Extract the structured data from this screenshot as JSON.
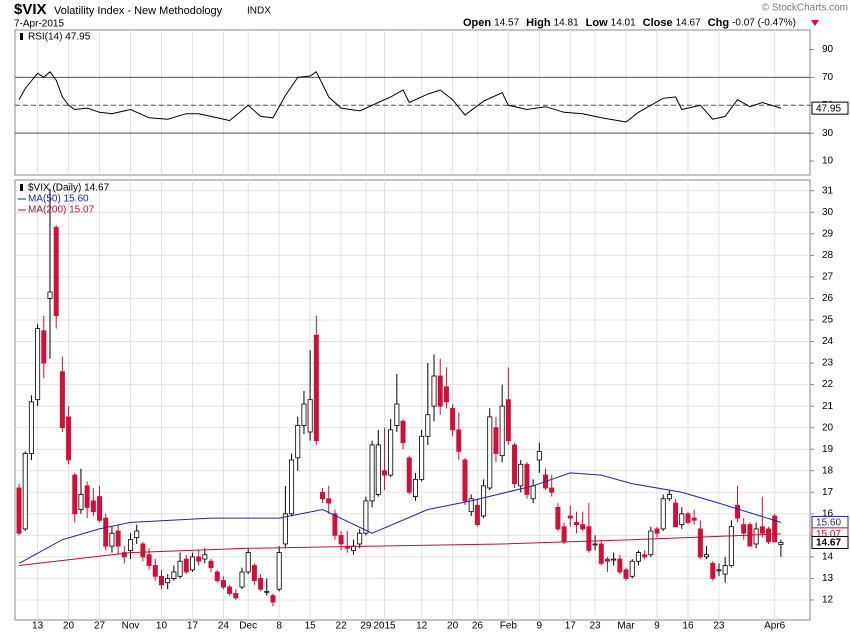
{
  "header": {
    "symbol": "$VIX",
    "name": "Volatility Index - New Methodology",
    "exchange": "INDX",
    "date": "7-Apr-2015",
    "credit": "© StockCharts.com",
    "quote": [
      {
        "label": "Open",
        "value": "14.57"
      },
      {
        "label": "High",
        "value": "14.81"
      },
      {
        "label": "Low",
        "value": "14.01"
      },
      {
        "label": "Close",
        "value": "14.67"
      },
      {
        "label": "Chg",
        "value": "-0.07 (-0.47%)"
      }
    ]
  },
  "chart_data": [
    {
      "type": "line",
      "xlim": [
        -0.65,
        127.7
      ],
      "ylim": [
        0,
        104
      ],
      "yticks": [
        10,
        30,
        50,
        70,
        90
      ],
      "grid": false,
      "reference_lines": [
        70,
        30
      ],
      "dashed_lines": [
        50
      ],
      "series": [
        {
          "name": "RSI(14) 47.95",
          "color": "#000000",
          "tag": 47.95,
          "x": [
            0,
            1,
            3,
            4,
            5,
            6,
            7,
            8,
            9,
            11,
            13,
            15,
            18,
            21,
            24,
            27,
            29,
            32,
            34,
            37,
            39,
            41,
            43,
            45,
            47,
            48,
            50,
            52,
            55,
            58,
            60,
            62,
            63,
            66,
            68,
            70,
            72,
            75,
            78,
            79,
            82,
            85,
            88,
            91,
            94,
            98,
            100,
            104,
            106,
            107,
            110,
            112,
            114,
            116,
            118,
            120,
            123
          ],
          "values": [
            54,
            62,
            73,
            70,
            74,
            68,
            56,
            50,
            47,
            48,
            45,
            44,
            47,
            41,
            40,
            44,
            44,
            41,
            39,
            50,
            42,
            41,
            57,
            70,
            71,
            74,
            56,
            48,
            46,
            52,
            56,
            61,
            52,
            58,
            61,
            54,
            43,
            53,
            59,
            50,
            47,
            49,
            45,
            44,
            41,
            38,
            45,
            55,
            56,
            47,
            50,
            40,
            42,
            54,
            49,
            52,
            47.95
          ]
        }
      ]
    },
    {
      "type": "candlestick",
      "xlim": [
        -0.65,
        127.7
      ],
      "ylim": [
        11.07,
        31.5
      ],
      "grid": true,
      "yticks": [
        12,
        13,
        14,
        15,
        16,
        17,
        18,
        19,
        20,
        21,
        22,
        23,
        24,
        25,
        26,
        27,
        28,
        29,
        30,
        31
      ],
      "xticks": [
        {
          "value": 3,
          "label": "13"
        },
        {
          "value": 8,
          "label": "20"
        },
        {
          "value": 13,
          "label": "27"
        },
        {
          "value": 18,
          "label": "Nov"
        },
        {
          "value": 23,
          "label": "10"
        },
        {
          "value": 28,
          "label": "17"
        },
        {
          "value": 33,
          "label": "24"
        },
        {
          "value": 37,
          "label": "Dec"
        },
        {
          "value": 42,
          "label": "8"
        },
        {
          "value": 47,
          "label": "15"
        },
        {
          "value": 52,
          "label": "22"
        },
        {
          "value": 56,
          "label": "29"
        },
        {
          "value": 59,
          "label": "2015"
        },
        {
          "value": 65,
          "label": "12"
        },
        {
          "value": 70,
          "label": "20"
        },
        {
          "value": 74,
          "label": "26"
        },
        {
          "value": 79,
          "label": "Feb"
        },
        {
          "value": 84,
          "label": "9"
        },
        {
          "value": 89,
          "label": "17"
        },
        {
          "value": 93,
          "label": "23"
        },
        {
          "value": 98,
          "label": "Mar"
        },
        {
          "value": 103,
          "label": "9"
        },
        {
          "value": 108,
          "label": "16"
        },
        {
          "value": 113,
          "label": "23"
        },
        {
          "value": 122,
          "label": "Apr6"
        }
      ],
      "candle_name": "$VIX (Daily) 14.67",
      "up_color": "#000000",
      "down_color": "#d0103a",
      "tag": 14.67,
      "candles": [
        [
          17.2,
          17.4,
          15.0,
          15.1
        ],
        [
          15.3,
          18.9,
          15.2,
          18.8
        ],
        [
          18.8,
          21.5,
          18.5,
          21.2
        ],
        [
          21.3,
          24.8,
          21.0,
          24.6
        ],
        [
          24.5,
          25.2,
          22.3,
          23.0
        ],
        [
          26.0,
          31.1,
          23.2,
          26.3
        ],
        [
          29.3,
          29.4,
          24.6,
          25.2
        ],
        [
          22.6,
          23.3,
          19.8,
          20.0
        ],
        [
          20.5,
          21.0,
          18.3,
          18.5
        ],
        [
          17.8,
          17.9,
          15.6,
          16.0
        ],
        [
          16.2,
          18.1,
          16.0,
          16.9
        ],
        [
          17.3,
          17.5,
          15.8,
          16.3
        ],
        [
          16.6,
          17.2,
          15.9,
          16.1
        ],
        [
          16.8,
          17.3,
          15.6,
          15.7
        ],
        [
          15.8,
          16.0,
          14.3,
          14.5
        ],
        [
          14.5,
          15.4,
          14.2,
          15.1
        ],
        [
          15.2,
          15.5,
          14.1,
          14.5
        ],
        [
          14.2,
          14.5,
          13.7,
          14.0
        ],
        [
          14.3,
          15.1,
          13.9,
          14.8
        ],
        [
          14.9,
          15.5,
          14.6,
          15.2
        ],
        [
          14.6,
          14.7,
          13.8,
          14.0
        ],
        [
          14.1,
          14.4,
          13.4,
          13.6
        ],
        [
          13.6,
          13.9,
          12.9,
          13.1
        ],
        [
          13.1,
          13.4,
          12.5,
          12.7
        ],
        [
          12.8,
          13.2,
          12.5,
          13.0
        ],
        [
          13.0,
          13.6,
          12.9,
          13.3
        ],
        [
          13.1,
          14.2,
          13.0,
          13.8
        ],
        [
          13.9,
          14.1,
          13.2,
          13.3
        ],
        [
          13.4,
          14.2,
          13.3,
          14.0
        ],
        [
          14.0,
          14.3,
          13.6,
          13.8
        ],
        [
          13.9,
          14.4,
          13.7,
          14.1
        ],
        [
          13.8,
          13.9,
          13.3,
          13.5
        ],
        [
          13.3,
          13.4,
          12.8,
          12.9
        ],
        [
          12.9,
          13.1,
          12.5,
          12.6
        ],
        [
          12.6,
          12.7,
          12.2,
          12.3
        ],
        [
          12.3,
          12.5,
          12.0,
          12.1
        ],
        [
          12.6,
          13.5,
          12.5,
          13.3
        ],
        [
          13.3,
          14.4,
          13.2,
          14.2
        ],
        [
          13.6,
          13.7,
          12.7,
          12.9
        ],
        [
          13.0,
          13.2,
          12.4,
          12.5
        ],
        [
          12.4,
          13.0,
          12.2,
          12.4
        ],
        [
          12.2,
          12.3,
          11.7,
          11.9
        ],
        [
          12.5,
          14.5,
          12.4,
          14.2
        ],
        [
          14.6,
          17.3,
          14.4,
          16.0
        ],
        [
          16.0,
          18.8,
          15.9,
          18.5
        ],
        [
          18.6,
          20.5,
          18.0,
          20.1
        ],
        [
          20.1,
          21.7,
          19.7,
          21.1
        ],
        [
          19.8,
          23.6,
          19.4,
          21.3
        ],
        [
          24.3,
          25.2,
          19.2,
          19.4
        ],
        [
          17.0,
          17.2,
          16.5,
          16.7
        ],
        [
          16.7,
          17.3,
          16.0,
          16.5
        ],
        [
          16.0,
          16.2,
          14.8,
          15.0
        ],
        [
          15.0,
          15.2,
          14.3,
          14.6
        ],
        [
          14.5,
          15.2,
          14.2,
          14.4
        ],
        [
          14.3,
          14.8,
          14.1,
          14.5
        ],
        [
          14.6,
          15.3,
          14.4,
          15.1
        ],
        [
          15.1,
          16.8,
          15.0,
          16.6
        ],
        [
          16.6,
          19.4,
          16.3,
          19.2
        ],
        [
          16.9,
          19.9,
          16.8,
          19.2
        ],
        [
          18.0,
          20.0,
          17.1,
          17.8
        ],
        [
          17.8,
          20.4,
          17.7,
          19.9
        ],
        [
          20.1,
          22.5,
          19.8,
          21.1
        ],
        [
          20.3,
          20.4,
          19.0,
          19.3
        ],
        [
          18.6,
          18.7,
          16.9,
          17.0
        ],
        [
          16.8,
          17.9,
          16.6,
          17.6
        ],
        [
          17.6,
          19.9,
          17.5,
          19.6
        ],
        [
          19.6,
          23.0,
          19.2,
          20.6
        ],
        [
          21.0,
          23.4,
          20.3,
          22.4
        ],
        [
          22.4,
          23.2,
          20.6,
          21.0
        ],
        [
          21.9,
          22.8,
          20.9,
          21.2
        ],
        [
          20.9,
          21.1,
          19.6,
          19.9
        ],
        [
          19.9,
          20.7,
          18.5,
          18.9
        ],
        [
          18.5,
          18.6,
          16.4,
          16.6
        ],
        [
          16.1,
          16.9,
          15.9,
          16.7
        ],
        [
          16.4,
          16.7,
          15.4,
          15.5
        ],
        [
          15.9,
          17.6,
          15.8,
          17.3
        ],
        [
          17.2,
          20.9,
          17.1,
          20.5
        ],
        [
          20.0,
          20.5,
          18.4,
          18.8
        ],
        [
          18.7,
          22.0,
          18.4,
          21.0
        ],
        [
          21.3,
          22.8,
          19.2,
          19.4
        ],
        [
          19.2,
          19.3,
          17.2,
          17.4
        ],
        [
          17.3,
          18.5,
          17.0,
          18.3
        ],
        [
          18.3,
          18.4,
          16.7,
          16.9
        ],
        [
          16.7,
          17.6,
          16.5,
          17.3
        ],
        [
          18.5,
          19.3,
          17.9,
          18.9
        ],
        [
          17.8,
          18.1,
          17.1,
          17.2
        ],
        [
          17.2,
          17.8,
          16.8,
          17.0
        ],
        [
          16.3,
          16.5,
          15.2,
          15.3
        ],
        [
          15.4,
          15.6,
          14.6,
          14.7
        ],
        [
          15.9,
          16.4,
          15.4,
          15.8
        ],
        [
          15.6,
          16.1,
          15.1,
          15.5
        ],
        [
          15.5,
          16.1,
          15.2,
          15.3
        ],
        [
          15.4,
          16.5,
          14.2,
          14.3
        ],
        [
          14.6,
          15.0,
          14.3,
          14.6
        ],
        [
          14.6,
          14.8,
          13.6,
          13.7
        ],
        [
          13.9,
          14.0,
          13.3,
          13.8
        ],
        [
          13.9,
          14.2,
          13.6,
          13.9
        ],
        [
          13.9,
          14.1,
          13.2,
          13.3
        ],
        [
          13.4,
          13.5,
          12.9,
          13.0
        ],
        [
          13.1,
          13.9,
          13.0,
          13.8
        ],
        [
          13.8,
          14.3,
          13.6,
          14.2
        ],
        [
          14.1,
          14.3,
          13.9,
          14.0
        ],
        [
          14.1,
          15.4,
          14.0,
          15.2
        ],
        [
          15.3,
          15.4,
          14.9,
          15.1
        ],
        [
          15.3,
          16.9,
          15.2,
          16.7
        ],
        [
          16.7,
          17.1,
          16.6,
          16.9
        ],
        [
          16.5,
          16.7,
          15.4,
          15.4
        ],
        [
          15.5,
          16.3,
          15.3,
          16.0
        ],
        [
          16.0,
          16.1,
          15.5,
          15.6
        ],
        [
          15.8,
          16.2,
          15.5,
          15.7
        ],
        [
          15.3,
          15.7,
          13.9,
          14.0
        ],
        [
          14.0,
          14.5,
          13.9,
          14.1
        ],
        [
          13.7,
          13.8,
          12.9,
          13.0
        ],
        [
          13.4,
          13.7,
          13.1,
          13.4
        ],
        [
          13.2,
          14.0,
          12.8,
          13.6
        ],
        [
          13.6,
          15.7,
          13.5,
          15.4
        ],
        [
          16.4,
          17.3,
          15.6,
          15.8
        ],
        [
          15.5,
          15.8,
          14.8,
          15.1
        ],
        [
          15.5,
          15.6,
          14.5,
          14.5
        ],
        [
          14.6,
          15.6,
          14.4,
          15.3
        ],
        [
          15.4,
          16.8,
          14.9,
          15.1
        ],
        [
          15.3,
          15.4,
          14.6,
          14.7
        ],
        [
          15.9,
          16.0,
          14.7,
          14.7
        ],
        [
          14.57,
          14.81,
          14.01,
          14.67
        ]
      ],
      "series": [
        {
          "name": "MA(50) 15.60",
          "color": "#1a2a9a",
          "tag": {
            "value": 15.6,
            "label": "15.60"
          },
          "x": [
            0,
            7,
            13,
            18,
            31,
            42,
            49,
            57,
            66,
            73,
            83,
            89,
            94,
            99,
            107,
            113,
            123
          ],
          "values": [
            13.7,
            14.8,
            15.3,
            15.6,
            15.8,
            15.8,
            16.2,
            15.1,
            16.2,
            16.6,
            17.3,
            17.9,
            17.8,
            17.4,
            17.0,
            16.5,
            15.6
          ]
        },
        {
          "name": "MA(200) 15.07",
          "color": "#c0102e",
          "tag": 15.07,
          "x": [
            0,
            18,
            37,
            57,
            78,
            99,
            123
          ],
          "values": [
            13.6,
            14.2,
            14.4,
            14.5,
            14.6,
            14.8,
            15.07
          ]
        }
      ]
    }
  ]
}
